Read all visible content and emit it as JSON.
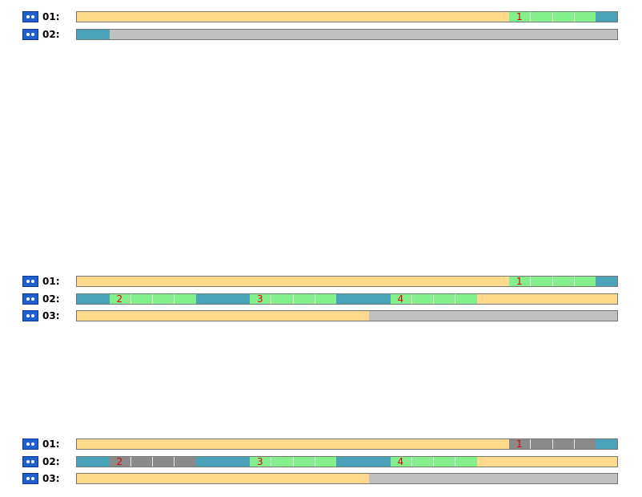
{
  "groups": [
    {
      "rows": [
        {
          "label": "01:",
          "segments": [
            {
              "color": "#ffd98c",
              "units": 20
            },
            {
              "color": "#84f08c",
              "cells": 4,
              "label": "1"
            },
            {
              "color": "#4aa3b8",
              "units": 1
            }
          ]
        },
        {
          "label": "02:",
          "segments": [
            {
              "color": "#4aa3b8",
              "units": 1.5
            },
            {
              "color": "#c0c0c0",
              "units": 23.5
            }
          ]
        }
      ]
    },
    {
      "rows": [
        {
          "label": "01:",
          "segments": [
            {
              "color": "#ffd98c",
              "units": 20
            },
            {
              "color": "#84f08c",
              "cells": 4,
              "label": "1"
            },
            {
              "color": "#4aa3b8",
              "units": 1
            }
          ]
        },
        {
          "label": "02:",
          "segments": [
            {
              "color": "#4aa3b8",
              "units": 1.5
            },
            {
              "color": "#84f08c",
              "cells": 4,
              "label": "2"
            },
            {
              "color": "#4aa3b8",
              "units": 2.5
            },
            {
              "color": "#84f08c",
              "cells": 4,
              "label": "3"
            },
            {
              "color": "#4aa3b8",
              "units": 2.5
            },
            {
              "color": "#84f08c",
              "cells": 4,
              "label": "4"
            },
            {
              "color": "#ffd98c",
              "units": 6.5
            }
          ]
        },
        {
          "label": "03:",
          "segments": [
            {
              "color": "#ffd98c",
              "units": 13.5
            },
            {
              "color": "#c0c0c0",
              "units": 11.5
            }
          ]
        }
      ]
    },
    {
      "rows": [
        {
          "label": "01:",
          "segments": [
            {
              "color": "#ffd98c",
              "units": 20
            },
            {
              "color": "#8a8a8a",
              "cells": 4,
              "label": "1"
            },
            {
              "color": "#4aa3b8",
              "units": 1
            }
          ]
        },
        {
          "label": "02:",
          "segments": [
            {
              "color": "#4aa3b8",
              "units": 1.5
            },
            {
              "color": "#8a8a8a",
              "cells": 4,
              "label": "2"
            },
            {
              "color": "#4aa3b8",
              "units": 2.5
            },
            {
              "color": "#84f08c",
              "cells": 4,
              "label": "3"
            },
            {
              "color": "#4aa3b8",
              "units": 2.5
            },
            {
              "color": "#84f08c",
              "cells": 4,
              "label": "4"
            },
            {
              "color": "#ffd98c",
              "units": 6.5
            }
          ]
        },
        {
          "label": "03:",
          "segments": [
            {
              "color": "#ffd98c",
              "units": 13.5
            },
            {
              "color": "#c0c0c0",
              "units": 11.5
            }
          ]
        }
      ]
    }
  ]
}
